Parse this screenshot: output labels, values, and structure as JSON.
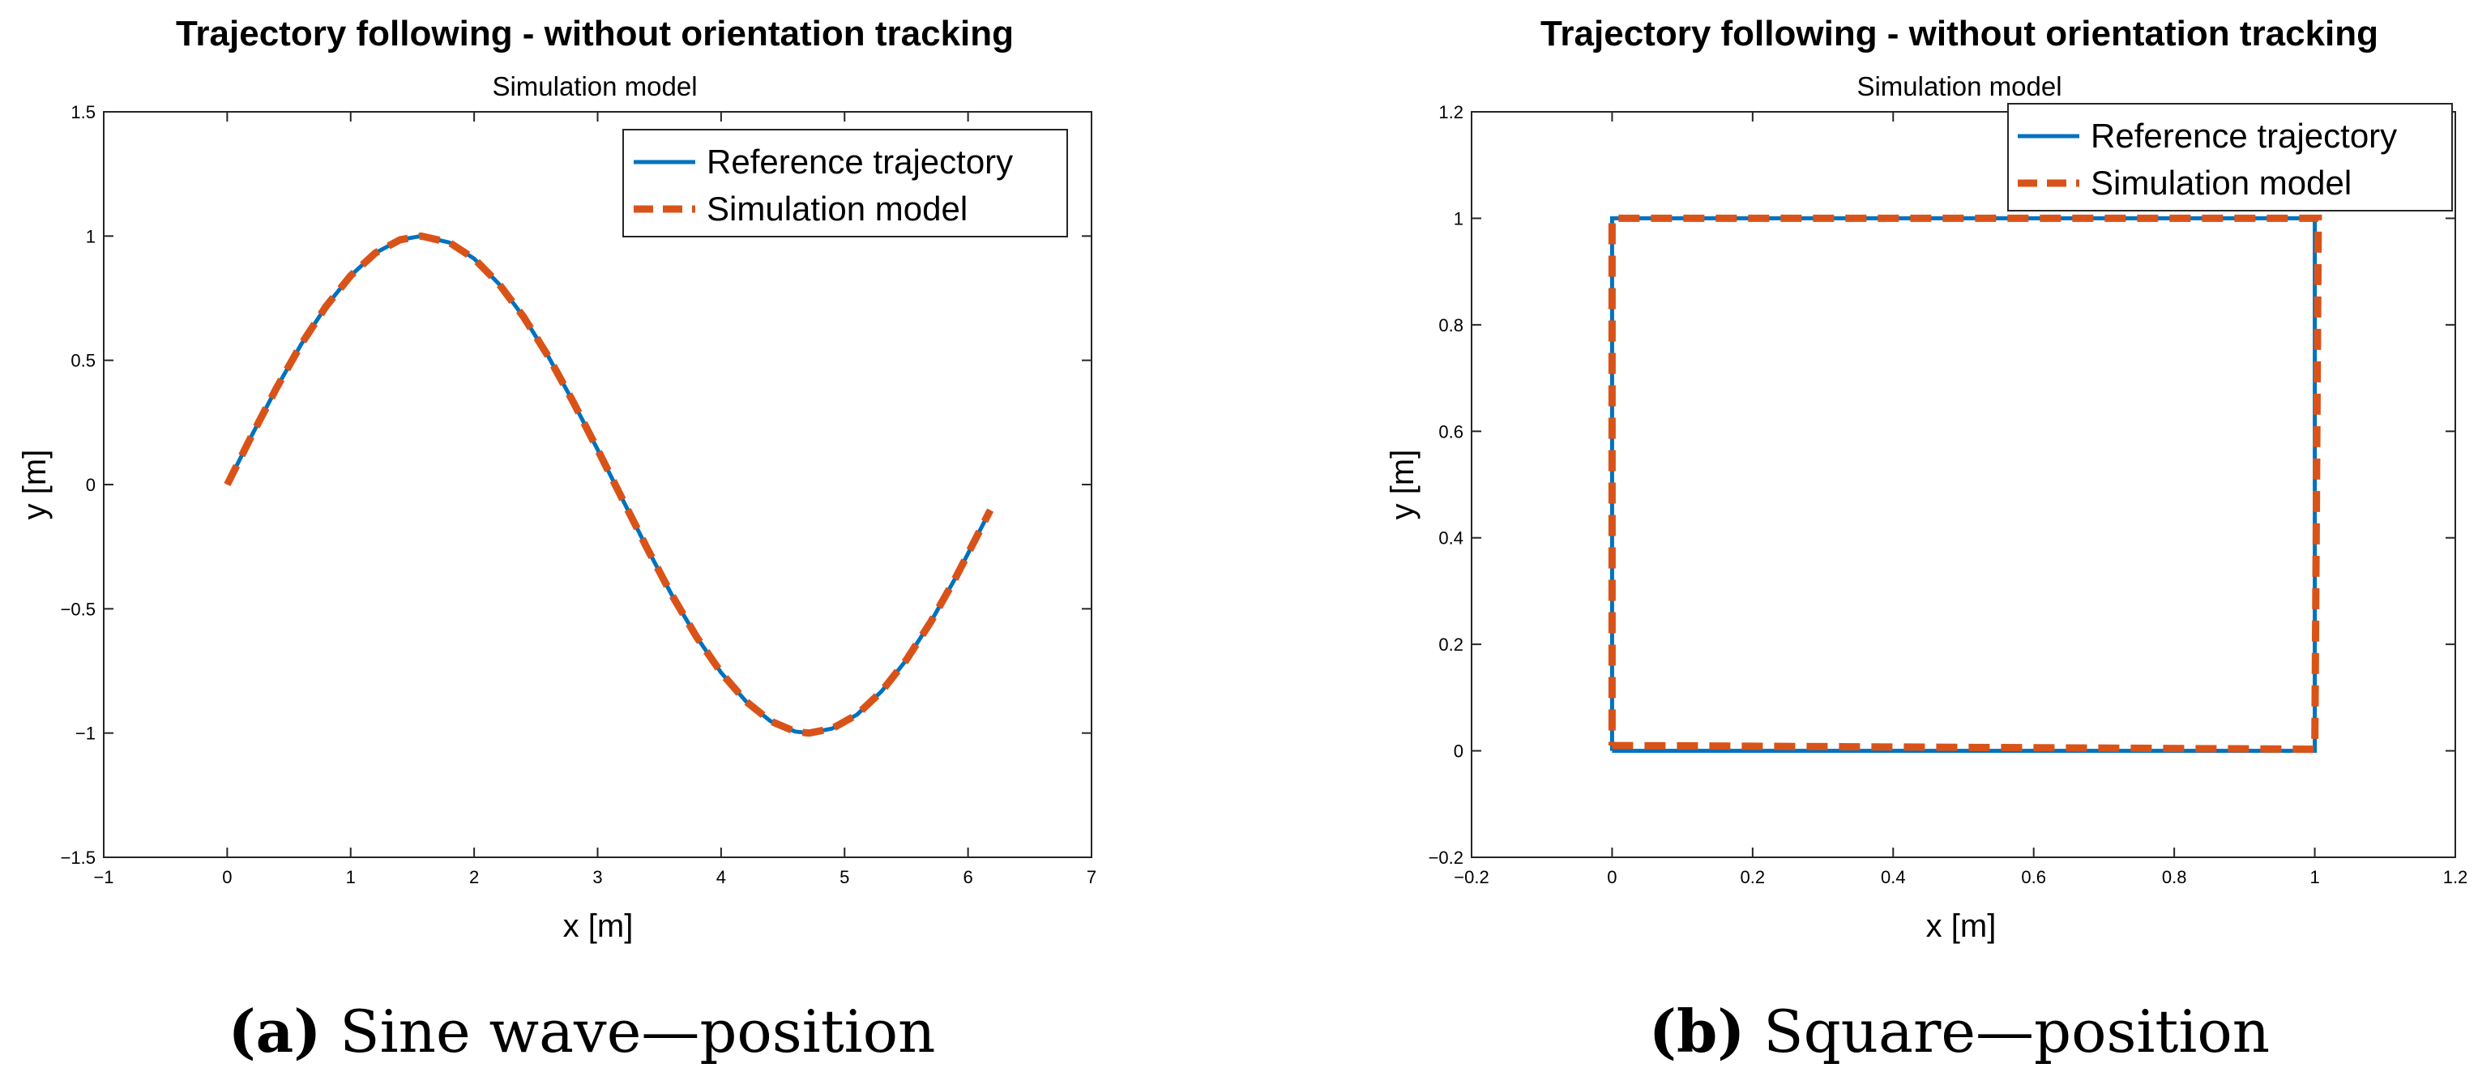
{
  "colors": {
    "reference": "#0072BD",
    "simulation": "#D95319",
    "axes": "#262626"
  },
  "chart_data": [
    {
      "type": "line",
      "title": "Trajectory following - without orientation tracking",
      "subtitle": "Simulation model",
      "xlabel": "x [m]",
      "ylabel": "y [m]",
      "xlim": [
        -1,
        7
      ],
      "ylim": [
        -1.5,
        1.5
      ],
      "xticks": [
        -1,
        0,
        1,
        2,
        3,
        4,
        5,
        6,
        7
      ],
      "xtick_labels": [
        "−1",
        "0",
        "1",
        "2",
        "3",
        "4",
        "5",
        "6",
        "7"
      ],
      "yticks": [
        -1.5,
        -1,
        -0.5,
        0,
        0.5,
        1,
        1.5
      ],
      "ytick_labels": [
        "−1.5",
        "−1",
        "−0.5",
        "0",
        "0.5",
        "1",
        "1.5"
      ],
      "legend_position": "top-right",
      "caption_letter": "(a)",
      "caption_text": " Sine wave—position",
      "series": [
        {
          "name": "Reference trajectory",
          "style": "solid",
          "x": [
            0,
            0.2,
            0.4,
            0.6,
            0.8,
            1.0,
            1.2,
            1.4,
            1.571,
            1.8,
            2.0,
            2.2,
            2.4,
            2.6,
            2.8,
            3.0,
            3.2,
            3.4,
            3.6,
            3.8,
            4.0,
            4.2,
            4.4,
            4.6,
            4.712,
            4.9,
            5.1,
            5.3,
            5.5,
            5.7,
            5.9,
            6.18
          ],
          "y": [
            0,
            0.199,
            0.389,
            0.565,
            0.717,
            0.841,
            0.932,
            0.985,
            1.0,
            0.974,
            0.909,
            0.808,
            0.675,
            0.516,
            0.335,
            0.141,
            -0.058,
            -0.256,
            -0.443,
            -0.612,
            -0.757,
            -0.872,
            -0.952,
            -0.994,
            -1.0,
            -0.982,
            -0.926,
            -0.832,
            -0.706,
            -0.551,
            -0.374,
            -0.103
          ]
        },
        {
          "name": "Simulation model",
          "style": "dashed",
          "x": [
            0,
            0.2,
            0.4,
            0.6,
            0.8,
            1.0,
            1.2,
            1.4,
            1.571,
            1.8,
            2.0,
            2.2,
            2.4,
            2.6,
            2.8,
            3.0,
            3.2,
            3.4,
            3.6,
            3.8,
            4.0,
            4.2,
            4.4,
            4.6,
            4.712,
            4.9,
            5.1,
            5.3,
            5.5,
            5.7,
            5.9,
            6.18
          ],
          "y": [
            0,
            0.199,
            0.389,
            0.565,
            0.717,
            0.841,
            0.932,
            0.985,
            1.0,
            0.974,
            0.909,
            0.808,
            0.675,
            0.516,
            0.335,
            0.141,
            -0.058,
            -0.256,
            -0.443,
            -0.612,
            -0.757,
            -0.872,
            -0.952,
            -0.994,
            -1.0,
            -0.982,
            -0.926,
            -0.832,
            -0.706,
            -0.551,
            -0.374,
            -0.103
          ]
        }
      ]
    },
    {
      "type": "line",
      "title": "Trajectory following - without orientation tracking",
      "subtitle": "Simulation model",
      "xlabel": "x [m]",
      "ylabel": "y [m]",
      "xlim": [
        -0.2,
        1.2
      ],
      "ylim": [
        -0.2,
        1.2
      ],
      "xticks": [
        -0.2,
        0,
        0.2,
        0.4,
        0.6,
        0.8,
        1,
        1.2
      ],
      "xtick_labels": [
        "−0.2",
        "0",
        "0.2",
        "0.4",
        "0.6",
        "0.8",
        "1",
        "1.2"
      ],
      "yticks": [
        -0.2,
        0,
        0.2,
        0.4,
        0.6,
        0.8,
        1,
        1.2
      ],
      "ytick_labels": [
        "−0.2",
        "0",
        "0.2",
        "0.4",
        "0.6",
        "0.8",
        "1",
        "1.2"
      ],
      "legend_position": "top-right",
      "caption_letter": "(b)",
      "caption_text": " Square—position",
      "series": [
        {
          "name": "Reference trajectory",
          "style": "solid",
          "x": [
            0,
            1,
            1,
            0,
            0
          ],
          "y": [
            0,
            0,
            1,
            1,
            0
          ]
        },
        {
          "name": "Simulation model",
          "style": "dashed",
          "x": [
            0,
            1,
            1.005,
            0,
            0
          ],
          "y": [
            0.01,
            0.003,
            1,
            1,
            0.01
          ]
        }
      ]
    }
  ]
}
